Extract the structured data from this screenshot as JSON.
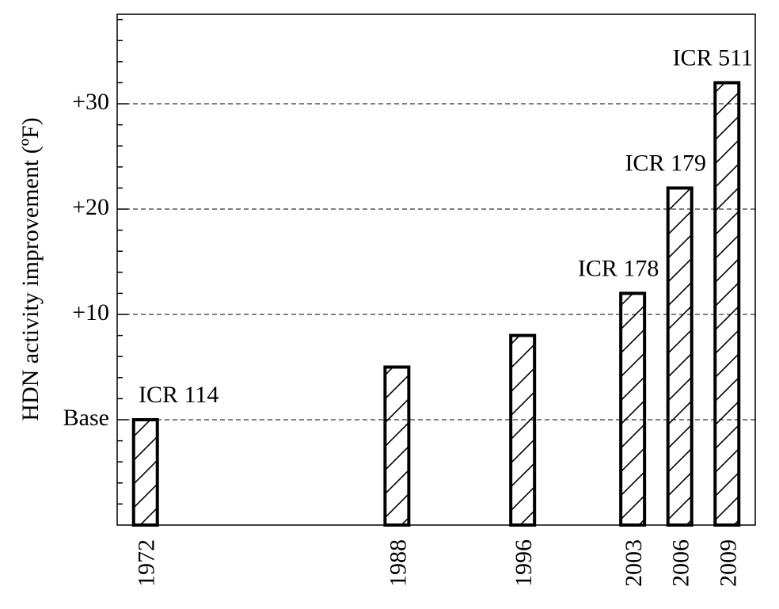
{
  "chart_data": {
    "type": "bar",
    "ylabel": "HDN activity improvement (ºF)",
    "xlabel": "",
    "title": "",
    "x": [
      1972,
      1988,
      1996,
      2003,
      2006,
      2009
    ],
    "x_tick_labels": [
      "1972",
      "1988",
      "1996",
      "2003",
      "2006",
      "2009"
    ],
    "values": [
      0,
      5,
      8,
      12,
      22,
      32
    ],
    "annotations": [
      {
        "x": 1972,
        "text": "ICR 114"
      },
      {
        "x": 2003,
        "text": "ICR 178"
      },
      {
        "x": 2006,
        "text": "ICR 179"
      },
      {
        "x": 2009,
        "text": "ICR 511"
      }
    ],
    "y_ticks": [
      {
        "value": 0,
        "label": "Base"
      },
      {
        "value": 10,
        "label": "+10"
      },
      {
        "value": 20,
        "label": "+20"
      },
      {
        "value": 30,
        "label": "+30"
      }
    ],
    "ylim": [
      -10,
      38.5
    ],
    "xlim": [
      1970.2,
      2010.8
    ],
    "grid": "horizontal dashed at labeled ticks",
    "bar_fill": "diagonal hatch",
    "colors": {
      "bar_stroke": "#000000",
      "background": "#ffffff"
    }
  }
}
